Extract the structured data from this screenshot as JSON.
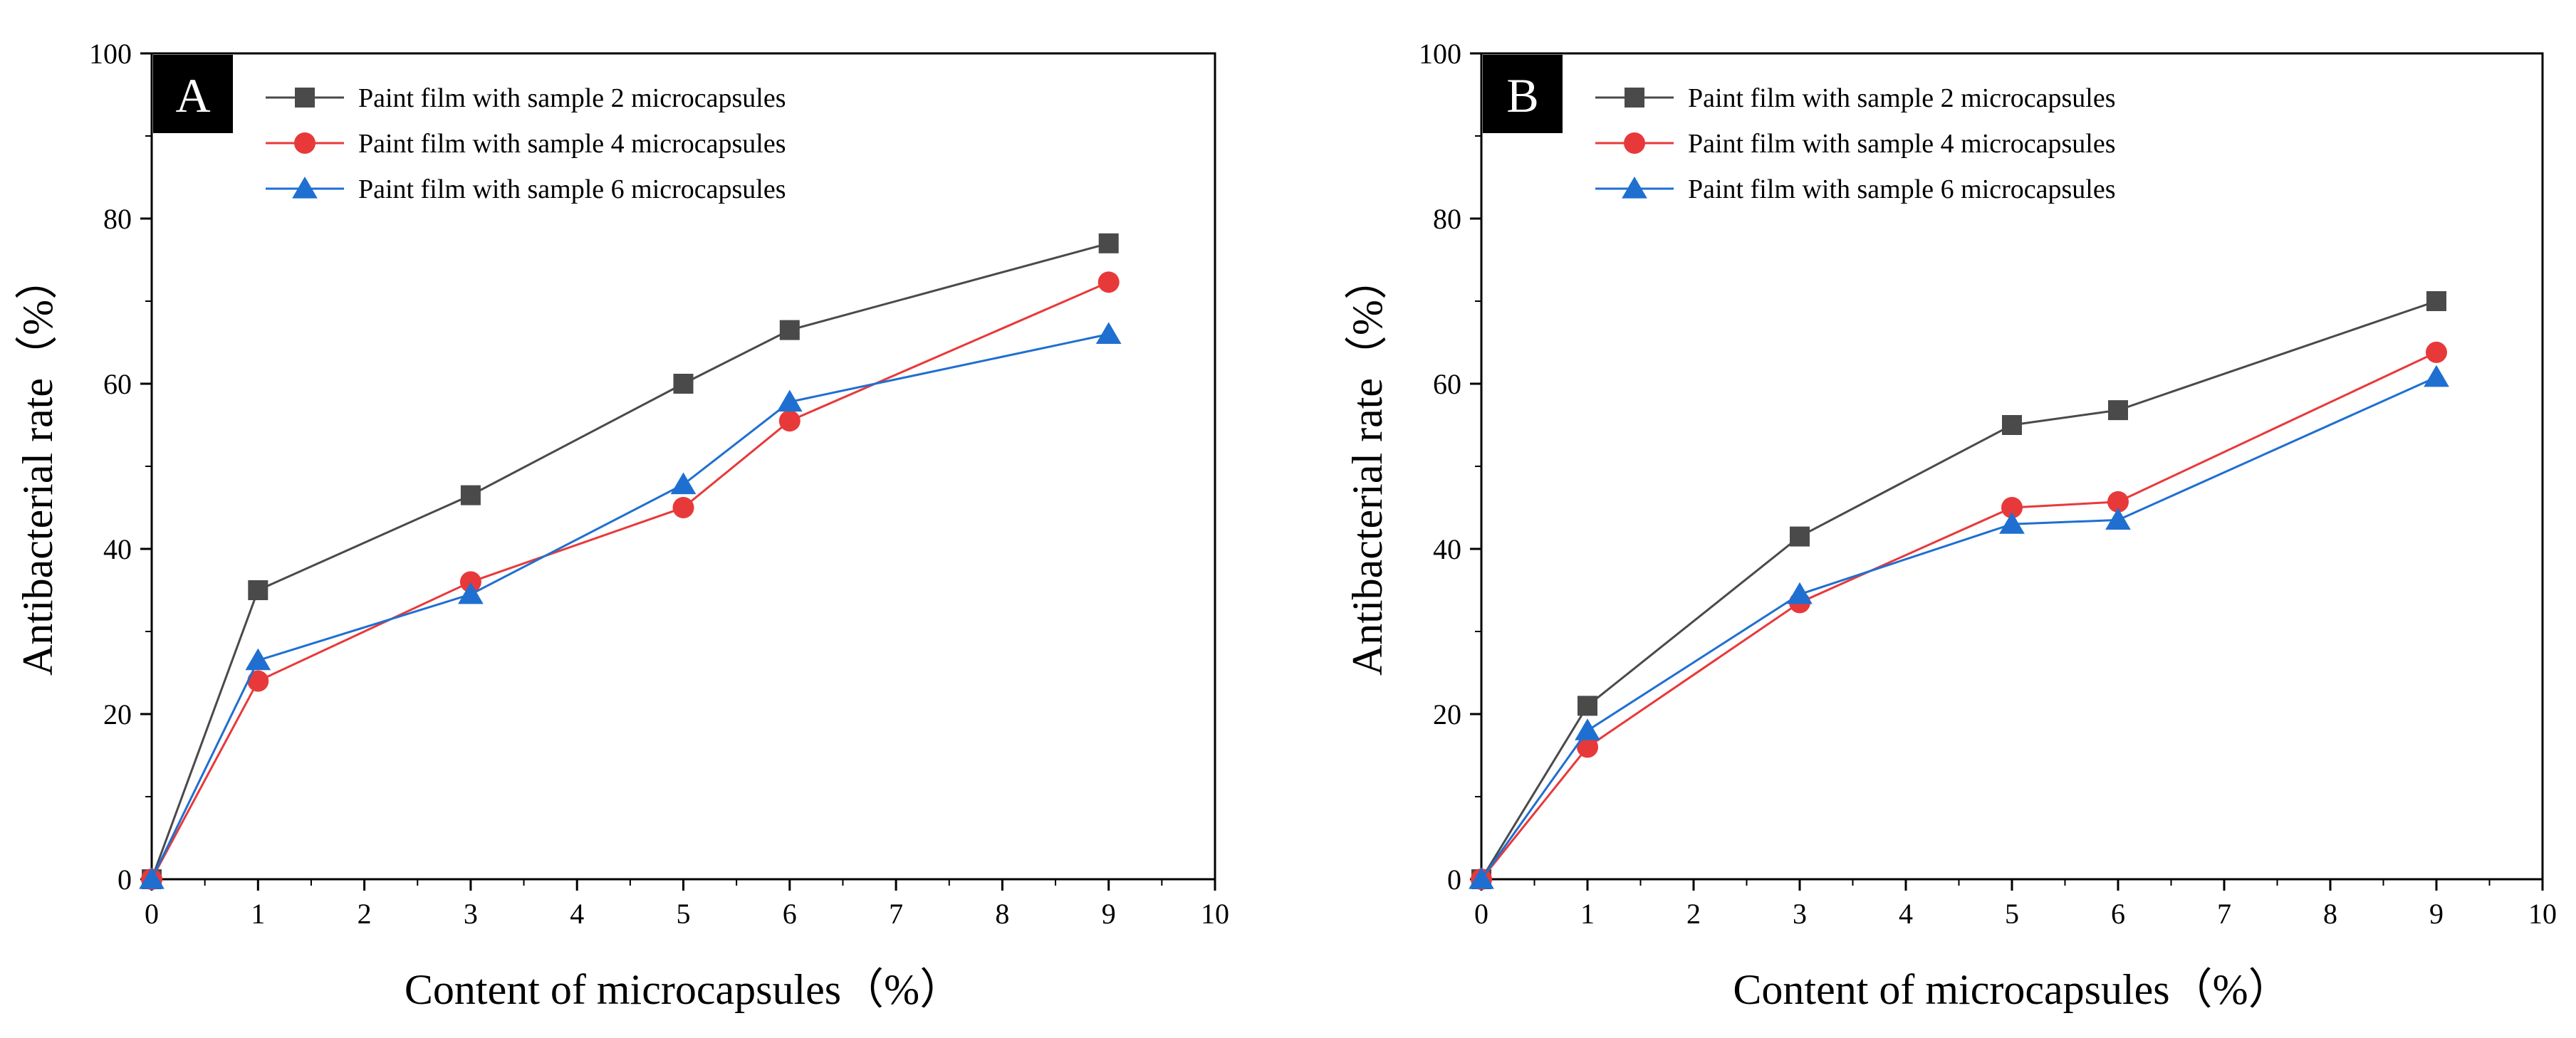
{
  "chart_data": [
    {
      "type": "line",
      "panel": "A",
      "title": "",
      "xlabel": "Content of microcapsules（%）",
      "ylabel": "Antibacterial rate（%）",
      "xlim": [
        0,
        10
      ],
      "ylim": [
        0,
        100
      ],
      "xticks": [
        0,
        1,
        2,
        3,
        4,
        5,
        6,
        7,
        8,
        9,
        10
      ],
      "yticks": [
        0,
        20,
        40,
        60,
        80,
        100
      ],
      "x": [
        0,
        1,
        3,
        5,
        6,
        9
      ],
      "legend_position": "top-left",
      "series": [
        {
          "name": "Paint film with sample 2 microcapsules",
          "marker": "square",
          "color": "#4a4a4a",
          "values": [
            0,
            35,
            46.5,
            60,
            66.5,
            77
          ]
        },
        {
          "name": "Paint film with sample 4 microcapsules",
          "marker": "circle",
          "color": "#e8393a",
          "values": [
            0,
            24,
            36,
            45,
            55.5,
            72.3
          ]
        },
        {
          "name": "Paint film with sample 6 microcapsules",
          "marker": "triangle",
          "color": "#1f6fd1",
          "values": [
            0,
            26.5,
            34.5,
            47.8,
            57.8,
            66
          ]
        }
      ]
    },
    {
      "type": "line",
      "panel": "B",
      "title": "",
      "xlabel": "Content of microcapsules（%）",
      "ylabel": "Antibacterial rate（%）",
      "xlim": [
        0,
        10
      ],
      "ylim": [
        0,
        100
      ],
      "xticks": [
        0,
        1,
        2,
        3,
        4,
        5,
        6,
        7,
        8,
        9,
        10
      ],
      "yticks": [
        0,
        20,
        40,
        60,
        80,
        100
      ],
      "x": [
        0,
        1,
        3,
        5,
        6,
        9
      ],
      "legend_position": "top-left",
      "series": [
        {
          "name": "Paint film with sample 2 microcapsules",
          "marker": "square",
          "color": "#4a4a4a",
          "values": [
            0,
            21,
            41.5,
            55,
            56.8,
            70
          ]
        },
        {
          "name": "Paint film with sample 4 microcapsules",
          "marker": "circle",
          "color": "#e8393a",
          "values": [
            0,
            16,
            33.5,
            45,
            45.7,
            63.8
          ]
        },
        {
          "name": "Paint film with sample 6 microcapsules",
          "marker": "triangle",
          "color": "#1f6fd1",
          "values": [
            0,
            18,
            34.5,
            43,
            43.5,
            60.8
          ]
        }
      ]
    }
  ]
}
